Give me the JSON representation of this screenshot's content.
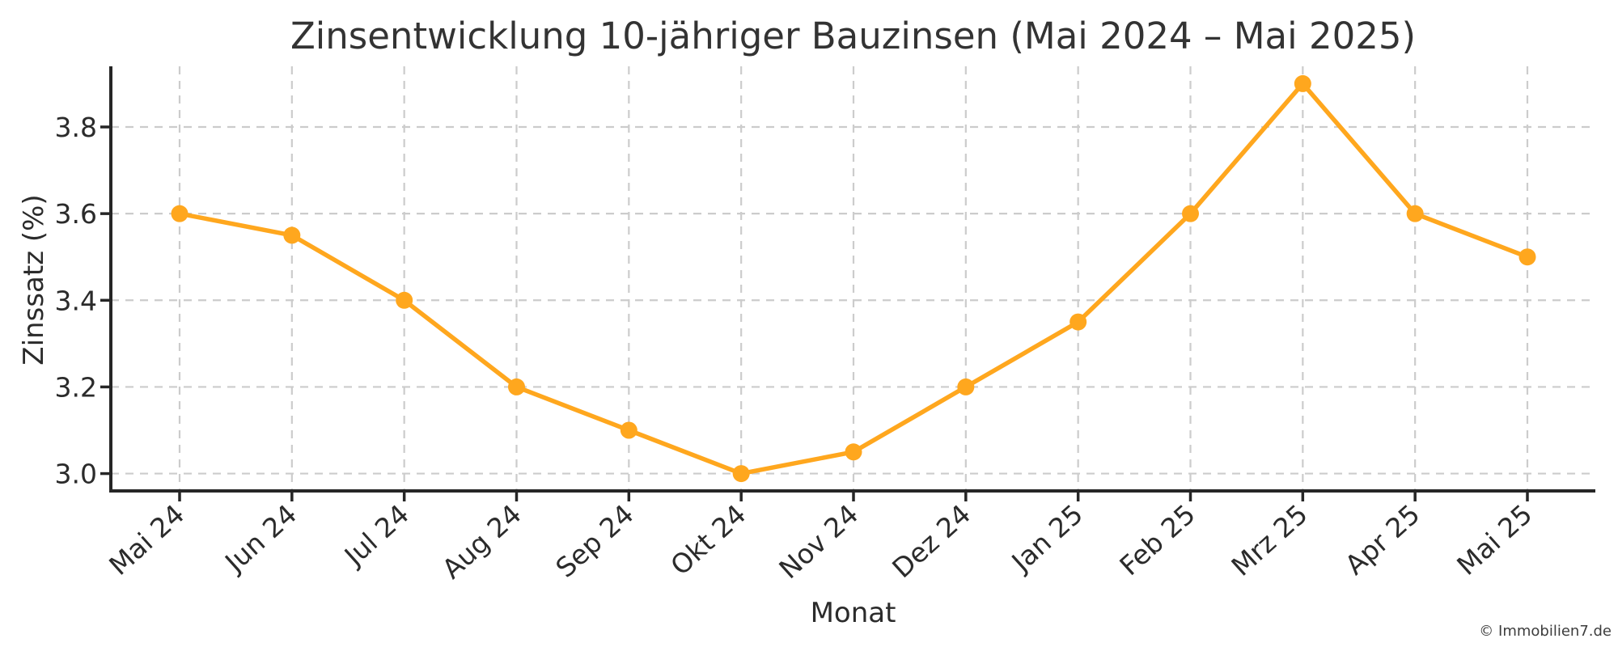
{
  "chart_data": {
    "type": "line",
    "title": "Zinsentwicklung 10-jähriger Bauzinsen (Mai 2024 – Mai 2025)",
    "xlabel": "Monat",
    "ylabel": "Zinssatz (%)",
    "categories": [
      "Mai 24",
      "Jun 24",
      "Jul 24",
      "Aug 24",
      "Sep 24",
      "Okt 24",
      "Nov 24",
      "Dez 24",
      "Jan 25",
      "Feb 25",
      "Mrz 25",
      "Apr 25",
      "Mai 25"
    ],
    "values": [
      3.6,
      3.55,
      3.4,
      3.2,
      3.1,
      3.0,
      3.05,
      3.2,
      3.35,
      3.6,
      3.9,
      3.6,
      3.5
    ],
    "yticks": [
      3.0,
      3.2,
      3.4,
      3.6,
      3.8
    ],
    "ylim": [
      2.96,
      3.94
    ],
    "grid": true,
    "legend": false,
    "marker": "circle",
    "colors": {
      "line": "#FFA71E",
      "marker": "#FFA71E",
      "grid": "#cccccc",
      "axis": "#262626",
      "title_text": "#333333",
      "tick_text": "#2b2b2b"
    }
  },
  "annotations": {
    "attribution": "© Immobilien7.de"
  }
}
